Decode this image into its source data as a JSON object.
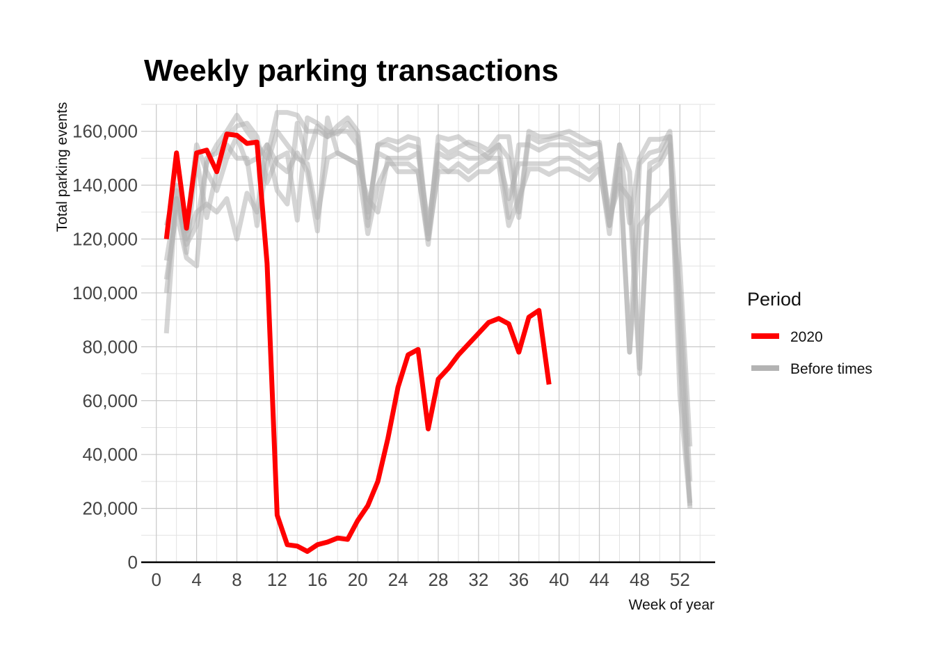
{
  "chart_data": {
    "type": "line",
    "title": "Weekly parking transactions",
    "xlabel": "Week of year",
    "ylabel": "Total parking events",
    "xlim": [
      -1.5,
      55.5
    ],
    "ylim": [
      0,
      170000
    ],
    "x_ticks": [
      0,
      4,
      8,
      12,
      16,
      20,
      24,
      28,
      32,
      36,
      40,
      44,
      48,
      52
    ],
    "x_tick_labels": [
      "0",
      "4",
      "8",
      "12",
      "16",
      "20",
      "24",
      "28",
      "32",
      "36",
      "40",
      "44",
      "48",
      "52"
    ],
    "y_ticks": [
      0,
      20000,
      40000,
      60000,
      80000,
      100000,
      120000,
      140000,
      160000
    ],
    "y_tick_labels": [
      "0",
      "20,000",
      "40,000",
      "60,000",
      "80,000",
      "100,000",
      "120,000",
      "140,000",
      "160,000"
    ],
    "grid": true,
    "legend": {
      "title": "Period",
      "position": "right",
      "entries": [
        {
          "label": "2020",
          "color": "#ff0000"
        },
        {
          "label": "Before times",
          "color": "#b3b3b3"
        }
      ]
    },
    "series": [
      {
        "period": "Before times",
        "color": "#b3b3b3",
        "opacity": 0.55,
        "x": [
          1,
          2,
          3,
          4,
          5,
          6,
          7,
          8,
          9,
          10,
          11,
          12,
          13,
          14,
          15,
          16,
          17,
          18,
          19,
          20,
          21,
          22,
          23,
          24,
          25,
          26,
          27,
          28,
          29,
          30,
          31,
          32,
          33,
          34,
          35,
          36,
          37,
          38,
          39,
          40,
          41,
          42,
          43,
          44,
          45,
          46,
          47,
          48,
          49,
          50,
          51,
          52,
          53
        ],
        "y": [
          112000,
          135000,
          118000,
          125000,
          148000,
          155000,
          160000,
          166000,
          160000,
          155000,
          150000,
          167000,
          167000,
          166000,
          160000,
          160000,
          158000,
          162000,
          165000,
          160000,
          128000,
          155000,
          157000,
          156000,
          158000,
          157000,
          122000,
          155000,
          152000,
          154000,
          156000,
          155000,
          153000,
          158000,
          158000,
          130000,
          160000,
          158000,
          158000,
          159000,
          160000,
          158000,
          156000,
          155000,
          125000,
          150000,
          78000,
          148000,
          152000,
          153000,
          160000,
          110000,
          43000
        ]
      },
      {
        "period": "Before times",
        "color": "#b3b3b3",
        "opacity": 0.55,
        "x": [
          1,
          2,
          3,
          4,
          5,
          6,
          7,
          8,
          9,
          10,
          11,
          12,
          13,
          14,
          15,
          16,
          17,
          18,
          19,
          20,
          21,
          22,
          23,
          24,
          25,
          26,
          27,
          28,
          29,
          30,
          31,
          32,
          33,
          34,
          35,
          36,
          37,
          38,
          39,
          40,
          41,
          42,
          43,
          44,
          45,
          46,
          47,
          48,
          49,
          50,
          51,
          52,
          53
        ],
        "y": [
          105000,
          130000,
          113000,
          110000,
          150000,
          152000,
          158000,
          162000,
          163000,
          158000,
          141000,
          150000,
          152000,
          127000,
          165000,
          163000,
          160000,
          159000,
          163000,
          158000,
          125000,
          155000,
          155000,
          153000,
          155000,
          154000,
          120000,
          158000,
          157000,
          158000,
          155000,
          153000,
          150000,
          155000,
          150000,
          128000,
          158000,
          156000,
          157000,
          158000,
          157000,
          155000,
          155000,
          156000,
          128000,
          155000,
          126000,
          150000,
          157000,
          157000,
          158000,
          62000,
          21000
        ]
      },
      {
        "period": "Before times",
        "color": "#b3b3b3",
        "opacity": 0.55,
        "x": [
          1,
          2,
          3,
          4,
          5,
          6,
          7,
          8,
          9,
          10,
          11,
          12,
          13,
          14,
          15,
          16,
          17,
          18,
          19,
          20,
          21,
          22,
          23,
          24,
          25,
          26,
          27,
          28,
          29,
          30,
          31,
          32,
          33,
          34,
          35,
          36,
          37,
          38,
          39,
          40,
          41,
          42,
          43,
          44,
          45,
          46,
          47,
          48,
          49,
          50,
          51,
          52,
          53
        ],
        "y": [
          85000,
          138000,
          120000,
          130000,
          133000,
          130000,
          135000,
          120000,
          137000,
          130000,
          155000,
          138000,
          133000,
          163000,
          150000,
          162000,
          158000,
          160000,
          160000,
          155000,
          130000,
          152000,
          150000,
          150000,
          150000,
          152000,
          125000,
          152000,
          150000,
          152000,
          150000,
          150000,
          152000,
          155000,
          128000,
          155000,
          155000,
          153000,
          155000,
          155000,
          155000,
          152000,
          150000,
          152000,
          128000,
          140000,
          135000,
          70000,
          145000,
          148000,
          155000,
          88000,
          20000
        ]
      },
      {
        "period": "Before times",
        "color": "#b3b3b3",
        "opacity": 0.55,
        "x": [
          1,
          2,
          3,
          4,
          5,
          6,
          7,
          8,
          9,
          10,
          11,
          12,
          13,
          14,
          15,
          16,
          17,
          18,
          19,
          20,
          21,
          22,
          23,
          24,
          25,
          26,
          27,
          28,
          29,
          30,
          31,
          32,
          33,
          34,
          35,
          36,
          37,
          38,
          39,
          40,
          41,
          42,
          43,
          44,
          45,
          46,
          47,
          48,
          49,
          50,
          51,
          52,
          53
        ],
        "y": [
          100000,
          135000,
          123000,
          155000,
          145000,
          138000,
          150000,
          158000,
          148000,
          150000,
          155000,
          148000,
          145000,
          152000,
          145000,
          123000,
          165000,
          152000,
          150000,
          148000,
          122000,
          140000,
          148000,
          148000,
          148000,
          145000,
          118000,
          148000,
          145000,
          148000,
          145000,
          148000,
          150000,
          150000,
          135000,
          148000,
          148000,
          148000,
          148000,
          150000,
          150000,
          148000,
          145000,
          148000,
          122000,
          155000,
          145000,
          72000,
          148000,
          150000,
          158000,
          75000,
          22000
        ]
      },
      {
        "period": "Before times",
        "color": "#b3b3b3",
        "opacity": 0.55,
        "x": [
          1,
          2,
          3,
          4,
          5,
          6,
          7,
          8,
          9,
          10,
          11,
          12,
          13,
          14,
          15,
          16,
          17,
          18,
          19,
          20,
          21,
          22,
          23,
          24,
          25,
          26,
          27,
          28,
          29,
          30,
          31,
          32,
          33,
          34,
          35,
          36,
          37,
          38,
          39,
          40,
          41,
          42,
          43,
          44,
          45,
          46,
          47,
          48,
          49,
          50,
          51,
          52,
          53
        ],
        "y": [
          125000,
          140000,
          115000,
          150000,
          128000,
          145000,
          155000,
          150000,
          150000,
          125000,
          148000,
          160000,
          155000,
          150000,
          148000,
          128000,
          150000,
          152000,
          150000,
          148000,
          135000,
          130000,
          150000,
          145000,
          145000,
          145000,
          120000,
          145000,
          145000,
          145000,
          142000,
          145000,
          145000,
          148000,
          125000,
          135000,
          146000,
          146000,
          144000,
          146000,
          146000,
          144000,
          142000,
          146000,
          125000,
          146000,
          78000,
          125000,
          130000,
          133000,
          138000,
          100000,
          30000
        ]
      },
      {
        "period": "2020",
        "color": "#ff0000",
        "opacity": 1,
        "x": [
          1,
          2,
          3,
          4,
          5,
          6,
          7,
          8,
          9,
          10,
          11,
          12,
          13,
          14,
          15,
          16,
          17,
          18,
          19,
          20,
          21,
          22,
          23,
          24,
          25,
          26,
          27,
          28,
          29,
          30,
          31,
          32,
          33,
          34,
          35,
          36,
          37,
          38,
          39
        ],
        "y": [
          120000,
          152000,
          124000,
          152000,
          153000,
          145000,
          159000,
          158500,
          155500,
          156000,
          111000,
          17500,
          6500,
          6000,
          4000,
          6500,
          7500,
          9000,
          8500,
          15500,
          21000,
          30000,
          46000,
          65000,
          77000,
          79000,
          49500,
          68000,
          72000,
          77000,
          81000,
          85000,
          89000,
          90500,
          88500,
          78000,
          91000,
          93500,
          66000
        ]
      }
    ]
  }
}
